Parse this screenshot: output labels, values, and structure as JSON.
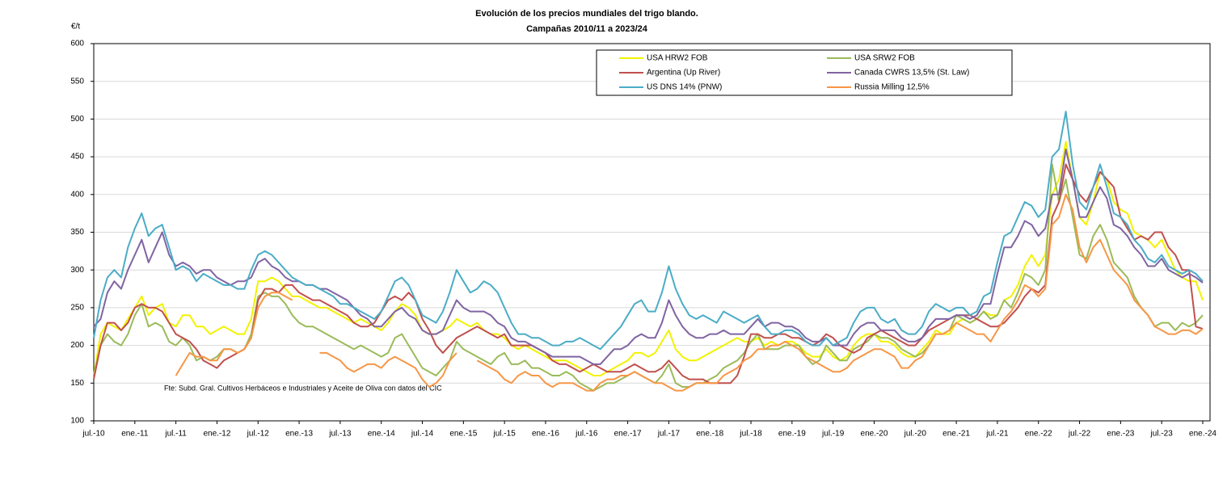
{
  "chart_data": {
    "type": "line",
    "title": "Evolución de los precios mundiales del trigo blando.",
    "subtitle": "Campañas 2010/11 a 2023/24",
    "y_label": "€/t",
    "annotation": "Fte: Subd. Gral. Cultivos Herbáceos e Industriales y Aceite de Oliva con datos del CIC",
    "ylim": [
      100,
      600
    ],
    "yticks": [
      100,
      150,
      200,
      250,
      300,
      350,
      400,
      450,
      500,
      550,
      600
    ],
    "grid": true,
    "legend": "top-right",
    "categories": [
      "jul.-10",
      null,
      null,
      null,
      null,
      null,
      "ene.-11",
      null,
      null,
      null,
      null,
      null,
      "jul.-11",
      null,
      null,
      null,
      null,
      null,
      "ene.-12",
      null,
      null,
      null,
      null,
      null,
      "jul.-12",
      null,
      null,
      null,
      null,
      null,
      "ene.-13",
      null,
      null,
      null,
      null,
      null,
      "jul.-13",
      null,
      null,
      null,
      null,
      null,
      "ene.-14",
      null,
      null,
      null,
      null,
      null,
      "jul.-14",
      null,
      null,
      null,
      null,
      null,
      "ene.-15",
      null,
      null,
      null,
      null,
      null,
      "jul.-15",
      null,
      null,
      null,
      null,
      null,
      "ene.-16",
      null,
      null,
      null,
      null,
      null,
      "jul.-16",
      null,
      null,
      null,
      null,
      null,
      "ene.-17",
      null,
      null,
      null,
      null,
      null,
      "jul.-17",
      null,
      null,
      null,
      null,
      null,
      "ene.-18",
      null,
      null,
      null,
      null,
      null,
      "jul.-18",
      null,
      null,
      null,
      null,
      null,
      "ene.-19",
      null,
      null,
      null,
      null,
      null,
      "jul.-19",
      null,
      null,
      null,
      null,
      null,
      "ene.-20",
      null,
      null,
      null,
      null,
      null,
      "jul.-20",
      null,
      null,
      null,
      null,
      null,
      "ene.-21",
      null,
      null,
      null,
      null,
      null,
      "jul.-21",
      null,
      null,
      null,
      null,
      null,
      "ene.-22",
      null,
      null,
      null,
      null,
      null,
      "jul.-22",
      null,
      null,
      null,
      null,
      null,
      "ene.-23",
      null,
      null,
      null,
      null,
      null,
      "jul.-23",
      null,
      null,
      null,
      null,
      null,
      "ene.-24"
    ],
    "series": [
      {
        "name": "USA HRW2 FOB",
        "color": "#f2f200",
        "values": [
          160,
          215,
          230,
          225,
          220,
          235,
          250,
          265,
          240,
          250,
          255,
          230,
          225,
          240,
          240,
          225,
          225,
          215,
          220,
          225,
          220,
          215,
          215,
          235,
          285,
          285,
          290,
          285,
          275,
          265,
          265,
          260,
          255,
          250,
          250,
          245,
          240,
          235,
          230,
          235,
          230,
          225,
          220,
          230,
          245,
          255,
          250,
          240,
          220,
          215,
          215,
          220,
          225,
          235,
          230,
          225,
          230,
          220,
          215,
          215,
          210,
          200,
          195,
          200,
          195,
          190,
          185,
          180,
          180,
          180,
          175,
          170,
          165,
          160,
          160,
          165,
          170,
          175,
          180,
          190,
          190,
          185,
          190,
          205,
          220,
          195,
          185,
          180,
          180,
          185,
          190,
          195,
          200,
          205,
          210,
          205,
          205,
          210,
          200,
          205,
          200,
          205,
          205,
          200,
          190,
          185,
          185,
          195,
          185,
          180,
          185,
          200,
          210,
          215,
          215,
          205,
          205,
          200,
          190,
          185,
          185,
          195,
          205,
          220,
          215,
          215,
          230,
          235,
          230,
          235,
          245,
          240,
          240,
          260,
          265,
          280,
          305,
          320,
          305,
          320,
          400,
          420,
          470,
          420,
          370,
          360,
          390,
          430,
          420,
          390,
          380,
          375,
          350,
          345,
          340,
          330,
          340,
          320,
          300,
          290,
          285,
          285,
          260
        ]
      },
      {
        "name": "USA SRW2 FOB",
        "color": "#9bbb59",
        "values": [
          160,
          200,
          215,
          205,
          200,
          215,
          240,
          255,
          225,
          230,
          225,
          205,
          200,
          210,
          200,
          180,
          185,
          180,
          185,
          195,
          195,
          190,
          195,
          215,
          265,
          270,
          265,
          265,
          255,
          240,
          230,
          225,
          225,
          220,
          215,
          210,
          205,
          200,
          195,
          200,
          195,
          190,
          185,
          190,
          210,
          215,
          200,
          185,
          170,
          165,
          160,
          170,
          180,
          205,
          195,
          190,
          185,
          180,
          175,
          185,
          190,
          175,
          175,
          180,
          170,
          170,
          165,
          160,
          160,
          165,
          160,
          150,
          145,
          140,
          145,
          150,
          150,
          155,
          160,
          165,
          160,
          155,
          150,
          160,
          175,
          150,
          145,
          145,
          150,
          150,
          155,
          160,
          170,
          175,
          180,
          190,
          205,
          215,
          195,
          195,
          195,
          200,
          200,
          200,
          185,
          175,
          180,
          200,
          190,
          180,
          180,
          195,
          200,
          205,
          215,
          210,
          210,
          205,
          195,
          190,
          185,
          190,
          200,
          215,
          215,
          220,
          240,
          235,
          230,
          235,
          245,
          235,
          240,
          260,
          250,
          270,
          295,
          290,
          280,
          300,
          440,
          390,
          420,
          370,
          320,
          315,
          345,
          360,
          340,
          310,
          300,
          290,
          265,
          250,
          240,
          225,
          230,
          230,
          220,
          230,
          225,
          230,
          240
        ]
      },
      {
        "name": "Argentina (Up River)",
        "color": "#c0504d",
        "values": [
          155,
          200,
          230,
          230,
          220,
          230,
          250,
          255,
          250,
          250,
          245,
          230,
          215,
          210,
          205,
          195,
          180,
          175,
          170,
          180,
          185,
          190,
          195,
          210,
          260,
          275,
          275,
          270,
          280,
          280,
          270,
          265,
          260,
          260,
          255,
          250,
          245,
          240,
          230,
          225,
          225,
          230,
          245,
          260,
          265,
          260,
          270,
          260,
          235,
          220,
          200,
          190,
          200,
          210,
          215,
          220,
          225,
          220,
          215,
          210,
          215,
          200,
          200,
          200,
          200,
          195,
          190,
          180,
          175,
          175,
          170,
          165,
          170,
          175,
          170,
          165,
          165,
          165,
          170,
          175,
          170,
          165,
          165,
          170,
          180,
          170,
          160,
          155,
          155,
          155,
          150,
          150,
          150,
          150,
          160,
          185,
          215,
          215,
          210,
          210,
          215,
          215,
          210,
          210,
          205,
          200,
          205,
          215,
          210,
          200,
          195,
          190,
          195,
          210,
          215,
          220,
          215,
          210,
          205,
          200,
          200,
          210,
          220,
          225,
          230,
          235,
          240,
          240,
          240,
          235,
          230,
          225,
          225,
          230,
          240,
          250,
          265,
          275,
          270,
          280,
          370,
          390,
          440,
          420,
          400,
          390,
          410,
          430,
          420,
          410,
          370,
          355,
          340,
          345,
          340,
          350,
          350,
          330,
          320,
          300,
          300,
          225,
          222
        ]
      },
      {
        "name": "Canada CWRS 13,5% (St. Law)",
        "color": "#8064a2",
        "values": [
          225,
          235,
          270,
          285,
          275,
          300,
          320,
          340,
          310,
          330,
          350,
          320,
          305,
          310,
          305,
          295,
          300,
          300,
          290,
          285,
          280,
          285,
          285,
          290,
          310,
          315,
          305,
          300,
          290,
          285,
          285,
          280,
          280,
          275,
          275,
          270,
          265,
          260,
          250,
          240,
          235,
          225,
          225,
          235,
          245,
          250,
          240,
          235,
          220,
          215,
          215,
          220,
          240,
          260,
          250,
          245,
          245,
          245,
          240,
          230,
          225,
          210,
          205,
          205,
          200,
          195,
          190,
          185,
          185,
          185,
          185,
          185,
          180,
          175,
          175,
          185,
          195,
          195,
          200,
          210,
          215,
          210,
          210,
          230,
          260,
          240,
          225,
          215,
          210,
          210,
          215,
          215,
          220,
          215,
          215,
          215,
          225,
          235,
          225,
          230,
          230,
          225,
          225,
          220,
          210,
          205,
          205,
          210,
          200,
          200,
          200,
          215,
          225,
          230,
          230,
          220,
          220,
          220,
          210,
          205,
          205,
          210,
          225,
          235,
          235,
          235,
          240,
          240,
          235,
          240,
          255,
          255,
          295,
          330,
          330,
          345,
          365,
          360,
          345,
          355,
          400,
          400,
          460,
          420,
          370,
          370,
          390,
          410,
          395,
          360,
          355,
          345,
          330,
          320,
          305,
          305,
          315,
          300,
          295,
          290,
          295,
          290,
          283
        ]
      },
      {
        "name": "US DNS 14% (PNW)",
        "color": "#4bacc6",
        "values": [
          210,
          260,
          290,
          300,
          290,
          330,
          355,
          375,
          345,
          355,
          360,
          330,
          300,
          305,
          300,
          285,
          295,
          290,
          285,
          280,
          280,
          275,
          275,
          300,
          320,
          325,
          320,
          310,
          300,
          290,
          285,
          280,
          280,
          275,
          270,
          265,
          255,
          255,
          250,
          245,
          240,
          235,
          245,
          265,
          285,
          290,
          280,
          260,
          240,
          235,
          230,
          245,
          270,
          300,
          285,
          270,
          275,
          285,
          280,
          270,
          250,
          230,
          215,
          215,
          210,
          210,
          205,
          200,
          200,
          205,
          205,
          210,
          205,
          200,
          195,
          205,
          215,
          225,
          240,
          255,
          260,
          245,
          245,
          270,
          305,
          275,
          255,
          240,
          235,
          240,
          235,
          230,
          245,
          240,
          235,
          230,
          235,
          240,
          225,
          215,
          215,
          220,
          220,
          215,
          205,
          200,
          200,
          210,
          200,
          205,
          210,
          230,
          245,
          250,
          250,
          235,
          230,
          235,
          220,
          215,
          215,
          225,
          245,
          255,
          250,
          245,
          250,
          250,
          240,
          245,
          265,
          270,
          310,
          345,
          350,
          370,
          390,
          385,
          370,
          380,
          450,
          460,
          510,
          440,
          390,
          380,
          410,
          440,
          410,
          375,
          370,
          360,
          340,
          330,
          315,
          310,
          320,
          305,
          300,
          295,
          300,
          295,
          285
        ]
      },
      {
        "name": "Russia Milling 12,5%",
        "color": "#f79646",
        "values": [
          null,
          null,
          null,
          null,
          null,
          null,
          null,
          null,
          null,
          null,
          null,
          null,
          160,
          175,
          190,
          185,
          185,
          180,
          180,
          195,
          195,
          190,
          195,
          210,
          250,
          265,
          270,
          270,
          265,
          260,
          null,
          null,
          null,
          190,
          190,
          185,
          180,
          170,
          165,
          170,
          175,
          175,
          170,
          180,
          185,
          180,
          175,
          170,
          155,
          145,
          150,
          160,
          180,
          190,
          null,
          null,
          180,
          175,
          170,
          165,
          155,
          150,
          160,
          165,
          160,
          160,
          150,
          145,
          150,
          150,
          150,
          145,
          140,
          140,
          150,
          155,
          155,
          160,
          160,
          165,
          160,
          155,
          150,
          150,
          145,
          140,
          140,
          145,
          150,
          150,
          150,
          150,
          160,
          165,
          170,
          180,
          185,
          195,
          195,
          200,
          200,
          205,
          200,
          195,
          185,
          180,
          175,
          170,
          165,
          165,
          170,
          180,
          185,
          190,
          195,
          195,
          190,
          185,
          170,
          170,
          180,
          185,
          200,
          215,
          215,
          220,
          230,
          225,
          220,
          215,
          215,
          205,
          220,
          235,
          245,
          260,
          280,
          275,
          265,
          275,
          360,
          370,
          400,
          380,
          330,
          310,
          330,
          340,
          320,
          300,
          290,
          280,
          260,
          250,
          240,
          225,
          220,
          215,
          215,
          220,
          220,
          215,
          222
        ]
      }
    ]
  }
}
